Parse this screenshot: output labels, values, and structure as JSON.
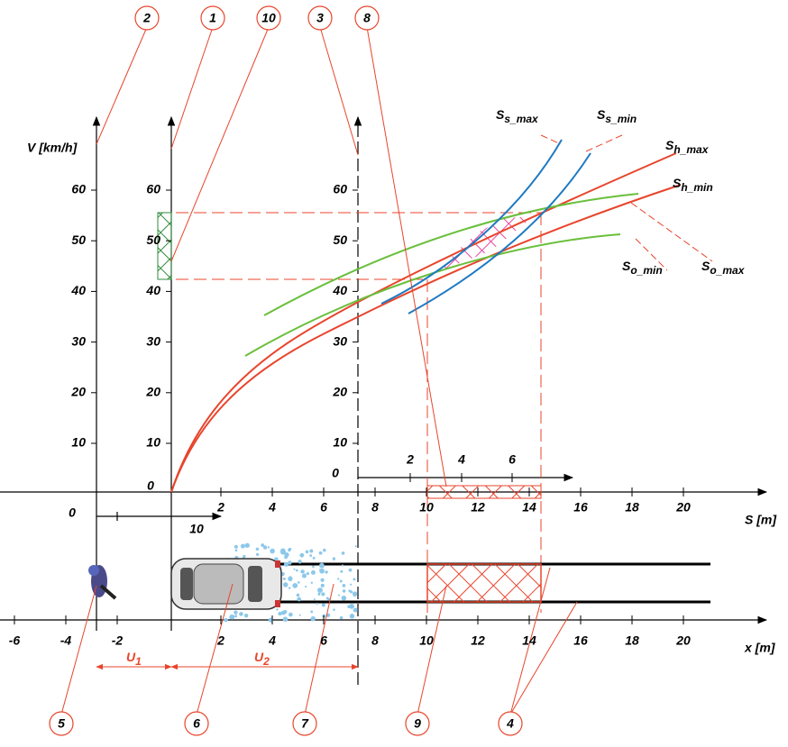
{
  "callouts": {
    "top": [
      "2",
      "1",
      "10",
      "3",
      "8"
    ],
    "bottom": [
      "5",
      "6",
      "7",
      "9",
      "4"
    ]
  },
  "axes": {
    "v_label": "V [km/h]",
    "s_label": "S [m]",
    "x_label": "x [m]",
    "v_ticks": [
      "10",
      "20",
      "30",
      "40",
      "50",
      "60"
    ],
    "v_zero": "0",
    "s_ticks": [
      "2",
      "4",
      "6",
      "8",
      "10",
      "12",
      "14",
      "16",
      "18",
      "20"
    ],
    "x_ticks": [
      "-6",
      "-4",
      "-2",
      "2",
      "4",
      "6",
      "8",
      "10",
      "12",
      "14",
      "16",
      "18",
      "20"
    ],
    "small_ticks": [
      "2",
      "4",
      "6"
    ],
    "lower_zero": "0",
    "lower_ten": "10"
  },
  "dimensions": [
    {
      "main": "U",
      "sub": "1"
    },
    {
      "main": "U",
      "sub": "2"
    }
  ],
  "curves": [
    {
      "main": "S",
      "sub": "s_max"
    },
    {
      "main": "S",
      "sub": "s_min"
    },
    {
      "main": "S",
      "sub": "h_max"
    },
    {
      "main": "S",
      "sub": "h_min"
    },
    {
      "main": "S",
      "sub": "o_min"
    },
    {
      "main": "S",
      "sub": "o_max"
    }
  ]
}
